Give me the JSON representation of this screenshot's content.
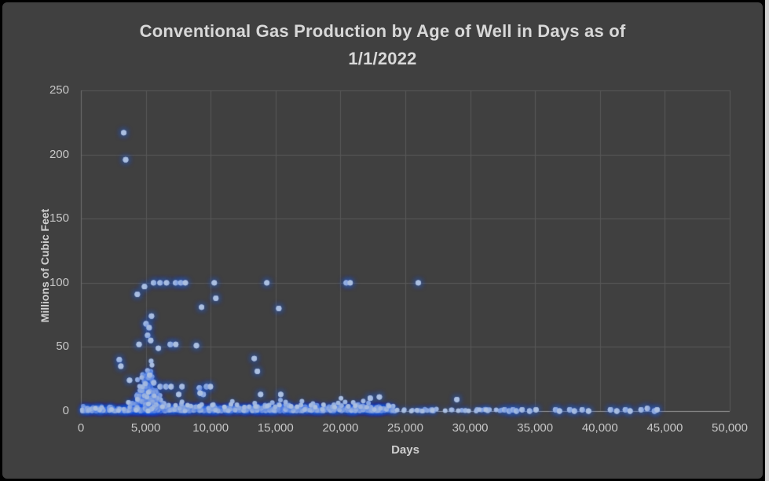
{
  "window": {
    "background": "#404040",
    "frame_color": "#000000",
    "edge_strip_color": "#d3d3d3"
  },
  "title": {
    "text": "Conventional Gas Production by Age of Well in Days as of 1/1/2022",
    "lines": [
      "Conventional Gas Production by Age of Well in Days as of",
      "1/1/2022"
    ]
  },
  "chart_data": {
    "type": "scatter",
    "title": "Conventional Gas Production by Age of Well in Days as of 1/1/2022",
    "xlabel": "Days",
    "ylabel": "Millions of Cubic Feet",
    "xlim": [
      0,
      50000
    ],
    "ylim": [
      0,
      250
    ],
    "grid": true,
    "legend": "none",
    "background": "#404040",
    "grid_color": "#585858",
    "axis_line_color": "#9b9b9b",
    "axis_text_color": "#c7c7c7",
    "marker": {
      "fill": "#abbfe0",
      "glow_rgb": "40,100,235"
    },
    "xticks": [
      {
        "value": 0,
        "label": "0"
      },
      {
        "value": 5000,
        "label": "5,000"
      },
      {
        "value": 10000,
        "label": "10,000"
      },
      {
        "value": 15000,
        "label": "15,000"
      },
      {
        "value": 20000,
        "label": "20,000"
      },
      {
        "value": 25000,
        "label": "25,000"
      },
      {
        "value": 30000,
        "label": "30,000"
      },
      {
        "value": 35000,
        "label": "35,000"
      },
      {
        "value": 40000,
        "label": "40,000"
      },
      {
        "value": 45000,
        "label": "45,000"
      },
      {
        "value": 50000,
        "label": "50,000"
      }
    ],
    "yticks": [
      {
        "value": 0,
        "label": "0"
      },
      {
        "value": 50,
        "label": "50"
      },
      {
        "value": 100,
        "label": "100"
      },
      {
        "value": 150,
        "label": "150"
      },
      {
        "value": 200,
        "label": "200"
      },
      {
        "value": 250,
        "label": "250"
      }
    ],
    "points": [
      [
        3300,
        217
      ],
      [
        3450,
        196
      ],
      [
        4350,
        91
      ],
      [
        4900,
        97
      ],
      [
        5600,
        100
      ],
      [
        6100,
        100
      ],
      [
        6600,
        100
      ],
      [
        7300,
        100
      ],
      [
        7700,
        100
      ],
      [
        8050,
        100
      ],
      [
        10280,
        100
      ],
      [
        14330,
        100
      ],
      [
        20450,
        100
      ],
      [
        20750,
        100
      ],
      [
        26000,
        100
      ],
      [
        10400,
        88
      ],
      [
        9300,
        81
      ],
      [
        15250,
        80
      ],
      [
        5440,
        74
      ],
      [
        5020,
        68
      ],
      [
        5260,
        65
      ],
      [
        5140,
        59
      ],
      [
        5380,
        55
      ],
      [
        4480,
        52
      ],
      [
        6890,
        52
      ],
      [
        7310,
        52
      ],
      [
        8900,
        51
      ],
      [
        5970,
        49
      ],
      [
        2960,
        40
      ],
      [
        13360,
        41
      ],
      [
        3080,
        35
      ],
      [
        13600,
        31
      ],
      [
        3750,
        24
      ],
      [
        5300,
        28
      ],
      [
        5620,
        22
      ],
      [
        6110,
        19
      ],
      [
        6560,
        19
      ],
      [
        6950,
        19
      ],
      [
        7790,
        19
      ],
      [
        9130,
        18
      ],
      [
        9680,
        19
      ],
      [
        9980,
        19
      ],
      [
        7540,
        13
      ],
      [
        9430,
        13
      ],
      [
        13850,
        13
      ],
      [
        15400,
        13
      ],
      [
        9190,
        14
      ],
      [
        22300,
        10
      ],
      [
        23000,
        11
      ],
      [
        28970,
        9
      ],
      [
        32650,
        1
      ],
      [
        33000,
        0
      ],
      [
        33300,
        1
      ],
      [
        33560,
        0
      ],
      [
        34000,
        1
      ],
      [
        34580,
        0
      ],
      [
        35070,
        1
      ],
      [
        36580,
        1
      ],
      [
        36880,
        0
      ],
      [
        37670,
        1
      ],
      [
        38030,
        0
      ],
      [
        38630,
        1
      ],
      [
        39120,
        0
      ],
      [
        40810,
        1
      ],
      [
        41300,
        0
      ],
      [
        41960,
        1
      ],
      [
        42320,
        0
      ],
      [
        43170,
        1
      ],
      [
        43650,
        2
      ],
      [
        44200,
        0
      ],
      [
        44400,
        1
      ]
    ],
    "generated_clusters": [
      {
        "name": "baseline-band",
        "kind": "uniform-x",
        "x_min": 60,
        "x_max": 24200,
        "count": 620,
        "y_base": 0,
        "y_scale": 1.5,
        "y_max": 5,
        "r": 3.0,
        "seed": 11
      },
      {
        "name": "baseline-bumps",
        "kind": "uniform-x",
        "x_min": 3600,
        "x_max": 23800,
        "count": 80,
        "y_base": 3,
        "y_scale": 2.2,
        "y_max": 10,
        "r": 3.0,
        "seed": 22
      },
      {
        "name": "startup-cluster",
        "kind": "pyramid",
        "x_center": 5150,
        "x_sigma": 520,
        "count": 165,
        "y_scale": 14,
        "y_max": 48,
        "r": 3.1,
        "seed": 33
      },
      {
        "name": "sparse-tail",
        "kind": "uniform-x",
        "x_min": 24300,
        "x_max": 32500,
        "count": 40,
        "y_base": 0,
        "y_scale": 0.8,
        "y_max": 2.5,
        "r": 3.0,
        "seed": 44
      }
    ]
  }
}
